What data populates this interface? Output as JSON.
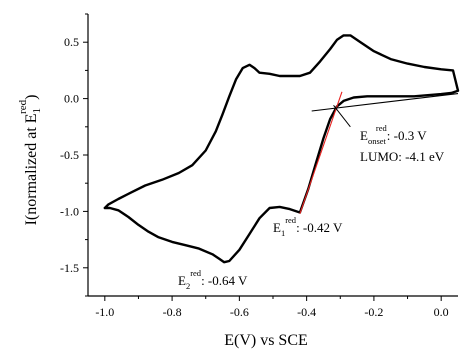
{
  "chart_data": {
    "type": "line",
    "xlabel": "E(V) vs SCE",
    "ylabel": {
      "prefix": "I(normalized at E",
      "sub": "1",
      "sup": "red",
      "suffix": ")"
    },
    "xlim": [
      -1.05,
      0.05
    ],
    "ylim": [
      -1.75,
      0.75
    ],
    "x_ticks": [
      -1.0,
      -0.8,
      -0.6,
      -0.4,
      -0.2,
      0.0
    ],
    "x_tick_labels": [
      "-1.0",
      "-0.8",
      "-0.6",
      "-0.4",
      "-0.2",
      "0.0"
    ],
    "y_ticks": [
      0.5,
      0.0,
      -0.5,
      -1.0,
      -1.5
    ],
    "y_tick_labels": [
      "0.5",
      "0.0",
      "-0.5",
      "-1.0",
      "-1.5"
    ],
    "grid": false,
    "series": [
      {
        "color": "#000000",
        "x": [
          -1.0,
          -0.985,
          -0.96,
          -0.93,
          -0.9,
          -0.87,
          -0.84,
          -0.8,
          -0.76,
          -0.72,
          -0.68,
          -0.66,
          -0.645,
          -0.63,
          -0.6,
          -0.57,
          -0.54,
          -0.51,
          -0.48,
          -0.45,
          -0.42,
          -0.395,
          -0.37,
          -0.35,
          -0.33,
          -0.31,
          -0.29,
          -0.26,
          -0.22,
          -0.18,
          -0.13,
          -0.08,
          -0.04,
          0.0,
          0.03,
          0.05,
          0.035,
          0.0,
          -0.05,
          -0.1,
          -0.15,
          -0.2,
          -0.24,
          -0.27,
          -0.29,
          -0.31,
          -0.33,
          -0.36,
          -0.39,
          -0.42,
          -0.45,
          -0.48,
          -0.51,
          -0.54,
          -0.555,
          -0.57,
          -0.59,
          -0.61,
          -0.63,
          -0.65,
          -0.67,
          -0.7,
          -0.74,
          -0.78,
          -0.83,
          -0.88,
          -0.92,
          -0.96,
          -0.99,
          -1.0
        ],
        "y": [
          -0.97,
          -0.97,
          -0.99,
          -1.05,
          -1.12,
          -1.18,
          -1.23,
          -1.27,
          -1.3,
          -1.33,
          -1.38,
          -1.42,
          -1.45,
          -1.44,
          -1.34,
          -1.2,
          -1.06,
          -0.97,
          -0.96,
          -0.98,
          -1.01,
          -0.8,
          -0.55,
          -0.35,
          -0.18,
          -0.07,
          -0.02,
          0.01,
          0.02,
          0.02,
          0.02,
          0.02,
          0.03,
          0.04,
          0.05,
          0.07,
          0.25,
          0.26,
          0.28,
          0.31,
          0.35,
          0.42,
          0.5,
          0.56,
          0.56,
          0.52,
          0.44,
          0.33,
          0.23,
          0.2,
          0.2,
          0.2,
          0.22,
          0.23,
          0.27,
          0.3,
          0.27,
          0.17,
          0.02,
          -0.14,
          -0.29,
          -0.46,
          -0.59,
          -0.66,
          -0.72,
          -0.77,
          -0.83,
          -0.89,
          -0.94,
          -0.97
        ]
      }
    ],
    "tangent_lines": [
      {
        "color": "#e8221f",
        "x": [
          -0.42,
          -0.295
        ],
        "y": [
          -1.02,
          0.06
        ]
      },
      {
        "color": "#000000",
        "x": [
          -0.385,
          0.05
        ],
        "y": [
          -0.11,
          0.045
        ]
      }
    ],
    "annotations": {
      "onset": {
        "main": "E",
        "sub": "onset",
        "sup": "red",
        "value": ": -0.3 V"
      },
      "lumo": "LUMO: -4.1 eV",
      "e1": {
        "main": "E",
        "sub": "1",
        "sup": "red",
        "value": ": -0.42 V"
      },
      "e2": {
        "main": "E",
        "sub": "2",
        "sup": "red",
        "value": ": -0.64 V"
      }
    }
  }
}
